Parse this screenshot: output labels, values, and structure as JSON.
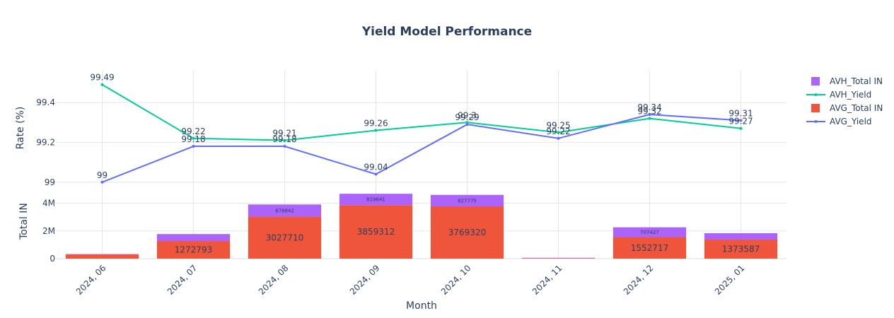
{
  "chart_data": {
    "type": "bar",
    "title": "Yield Model Performance",
    "xlabel": "Month",
    "categories": [
      "2024, 06",
      "2024, 07",
      "2024, 08",
      "2024, 09",
      "2024, 10",
      "2024, 11",
      "2024, 12",
      "2025, 01"
    ],
    "top_panel": {
      "type": "line",
      "ylabel": "Rate (%)",
      "ylim": [
        98.985,
        99.56
      ],
      "yticks": [
        99,
        99.2,
        99.4
      ],
      "ytick_labels": [
        "99",
        "99.2",
        "99.4"
      ],
      "series": [
        {
          "name": "AVH_Yield",
          "color": "#00cc96",
          "values": [
            99.49,
            99.22,
            99.21,
            99.26,
            99.3,
            99.25,
            99.32,
            99.27
          ],
          "labels": [
            "99.49",
            "99.22",
            "99.21",
            "99.26",
            "99.3",
            "99.25",
            "99.32",
            "99.27"
          ]
        },
        {
          "name": "AVG_Yield",
          "color": "#636efa",
          "values": [
            99.0,
            99.18,
            99.18,
            99.04,
            99.29,
            99.22,
            99.34,
            99.31
          ],
          "labels": [
            "99",
            "99.18",
            "99.18",
            "99.04",
            "99.29",
            "99.22",
            "99.34",
            "99.31"
          ]
        }
      ]
    },
    "bottom_panel": {
      "type": "bar",
      "stacked": true,
      "ylabel": "Total IN",
      "ylim": [
        0,
        5300000
      ],
      "yticks": [
        0,
        2000000,
        4000000
      ],
      "ytick_labels": [
        "0",
        "2M",
        "4M"
      ],
      "series": [
        {
          "name": "AVG_Total IN",
          "color": "#ef553b",
          "values": [
            300000,
            1272793,
            3027710,
            3859312,
            3769320,
            30000,
            1552717,
            1373587
          ],
          "labels": [
            "",
            "1272793",
            "3027710",
            "3859312",
            "3769320",
            "",
            "1552717",
            "1373587"
          ]
        },
        {
          "name": "AVH_Total IN",
          "color": "#ab63fa",
          "values": [
            0,
            500000,
            878842,
            819641,
            827775,
            15000,
            707427,
            460000
          ],
          "labels": [
            "",
            "",
            "878842",
            "819641",
            "827775",
            "",
            "707427",
            ""
          ]
        }
      ]
    },
    "legend": {
      "placement": "right",
      "items": [
        {
          "name": "AVH_Total IN",
          "kind": "bar",
          "color": "#ab63fa"
        },
        {
          "name": "AVH_Yield",
          "kind": "line",
          "color": "#00cc96"
        },
        {
          "name": "AVG_Total IN",
          "kind": "bar",
          "color": "#ef553b"
        },
        {
          "name": "AVG_Yield",
          "kind": "line",
          "color": "#636efa"
        }
      ]
    },
    "grid": true
  }
}
